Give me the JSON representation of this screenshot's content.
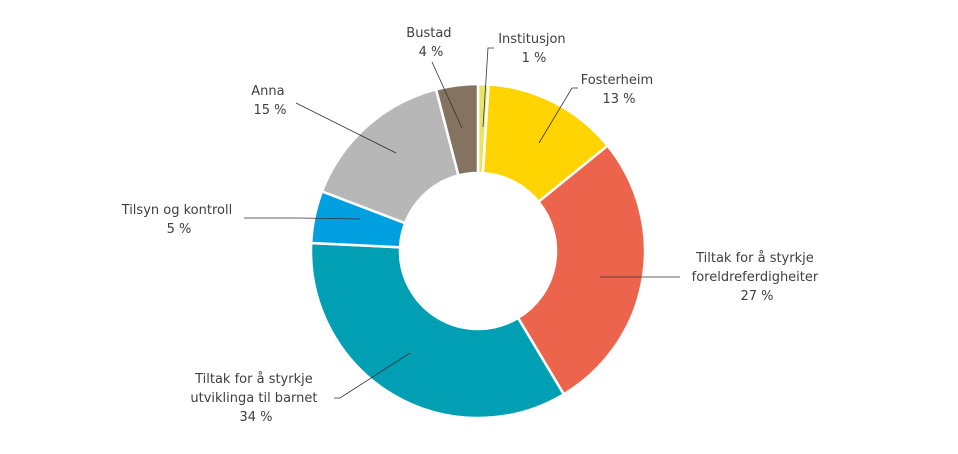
{
  "chart_data": {
    "type": "pie",
    "variant": "donut",
    "title": "",
    "start_angle": "12 o'clock, clockwise",
    "categories": [
      "Institusjon",
      "Fosterheim",
      "Tiltak for å styrkje foreldreferdigheiter",
      "Tiltak for å styrkje utviklinga til barnet",
      "Tilsyn og kontroll",
      "Anna",
      "Bustad"
    ],
    "values": [
      1,
      13,
      27,
      34,
      5,
      15,
      4
    ],
    "unit": "%",
    "colors": [
      "#e8e46a",
      "#ffd400",
      "#ec644b",
      "#009fb3",
      "#00a0e0",
      "#b7b7b7",
      "#857361"
    ],
    "labels": [
      {
        "lines": [
          "Institusjon",
          "1 %"
        ]
      },
      {
        "lines": [
          "Fosterheim",
          "13 %"
        ]
      },
      {
        "lines": [
          "Tiltak for å styrkje",
          "foreldreferdigheiter",
          "27 %"
        ]
      },
      {
        "lines": [
          "Tiltak for å styrkje",
          "utviklinga til barnet",
          "34 %"
        ]
      },
      {
        "lines": [
          "Tilsyn og kontroll",
          "5 %"
        ]
      },
      {
        "lines": [
          "Anna",
          "15 %"
        ]
      },
      {
        "lines": [
          "Bustad",
          "4 %"
        ]
      }
    ],
    "legend": "none (direct labels with leader lines)"
  }
}
